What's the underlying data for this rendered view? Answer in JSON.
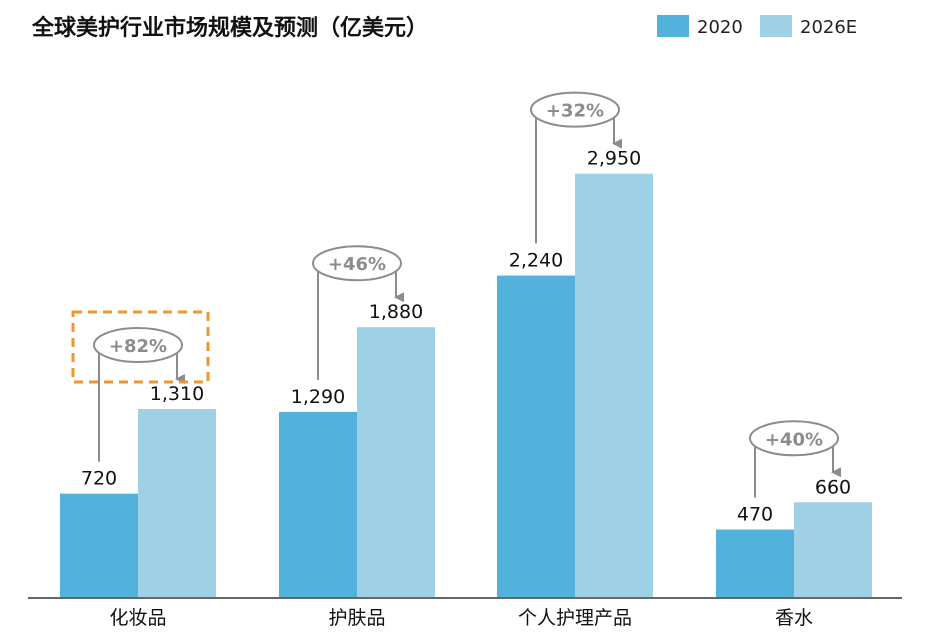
{
  "chart_data": {
    "type": "bar",
    "title": "全球美护行业市场规模及预测（亿美元）",
    "categories": [
      "化妆品",
      "护肤品",
      "个人护理产品",
      "香水"
    ],
    "series": [
      {
        "name": "2020",
        "values": [
          720,
          1290,
          2240,
          470
        ],
        "labels": [
          "720",
          "1,290",
          "2,240",
          "470"
        ],
        "color": "#52b2dc"
      },
      {
        "name": "2026E",
        "values": [
          1310,
          1880,
          2950,
          660
        ],
        "labels": [
          "1,310",
          "1,880",
          "2,950",
          "660"
        ],
        "color": "#9fd1e6"
      }
    ],
    "growth": [
      "+82%",
      "+46%",
      "+32%",
      "+40%"
    ],
    "highlighted_category": "化妆品",
    "highlight_color": "#f0962e",
    "annotation_color": "#8c8c8c",
    "ylim": [
      0,
      3300
    ],
    "grid": false,
    "legend_position": "top-right",
    "xlabel": "",
    "ylabel": ""
  }
}
